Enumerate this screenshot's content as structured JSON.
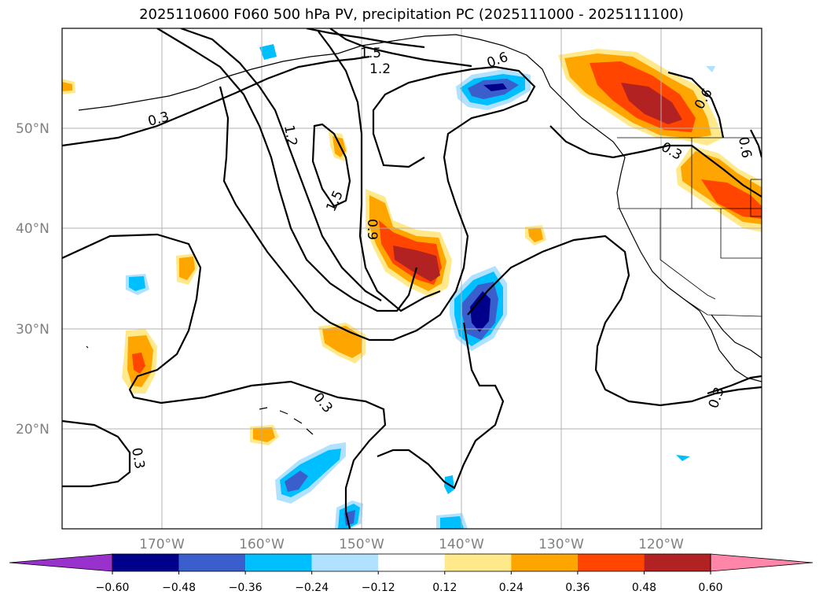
{
  "title": "2025110600 F060 500 hPa PV, precipitation PC (2025111000 - 2025111100)",
  "lat_labels": [
    "50°N",
    "40°N",
    "30°N",
    "20°N"
  ],
  "lon_labels": [
    "170°W",
    "160°W",
    "150°W",
    "140°W",
    "130°W",
    "120°W"
  ],
  "contour_labels": [
    "1.5",
    "1.2",
    "0.3",
    "1.2",
    "1.5",
    "0.9",
    "0.6",
    "0.6",
    "0.3",
    "0.6",
    "0.3",
    "0.3",
    "0.3"
  ],
  "colorbar": {
    "tick_labels": [
      "−0.60",
      "−0.48",
      "−0.36",
      "−0.24",
      "−0.12",
      "0.12",
      "0.24",
      "0.36",
      "0.48",
      "0.60"
    ],
    "colors": [
      "#9932cc",
      "#00008b",
      "#3a5fcd",
      "#00bfff",
      "#b0e2ff",
      "#ffffff",
      "#ffe98a",
      "#ffa500",
      "#ff4500",
      "#b22222",
      "#ff86a8"
    ]
  },
  "colors": {
    "neg_strong": "#00008b",
    "neg_mid": "#3a5fcd",
    "neg_light": "#00bfff",
    "neg_pale": "#b0e2ff",
    "pos_pale": "#ffe98a",
    "pos_light": "#ffa500",
    "pos_mid": "#ff4500",
    "pos_strong": "#b22222"
  }
}
